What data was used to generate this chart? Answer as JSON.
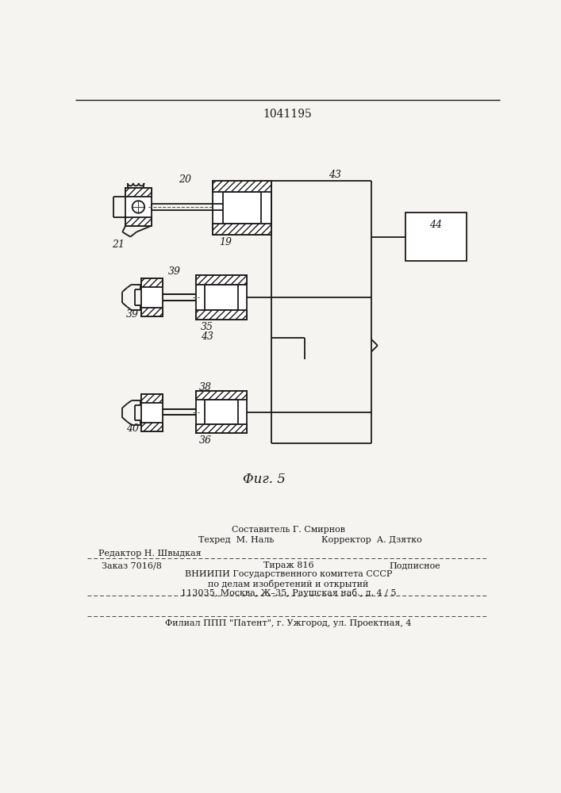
{
  "title": "1041195",
  "fig_label": "Φиг. 5",
  "bg_color": "#f5f4f0",
  "line_color": "#1a1a1a",
  "footer": {
    "sestavitel": "Составитель Г. Смирнов",
    "tehred": "Техред  М. Наль",
    "korrektor": "Корректор  А. Дзятко",
    "redaktor": "Редактор Н. Швыдкая",
    "zakaz": "Заказ 7016/8",
    "tirazh": "Тираж 816",
    "podpisnoe": "Подписное",
    "vniipи": "ВНИИПИ Государственного комитета СССР",
    "po_delam": "по делам изобретений и открытий",
    "address": "113035, Москва, Ж–35, Раушская наб., д. 4 / 5",
    "filial": "Филиал ППП \"Патент\", г. Ужгород, ул. Проектная, 4"
  }
}
